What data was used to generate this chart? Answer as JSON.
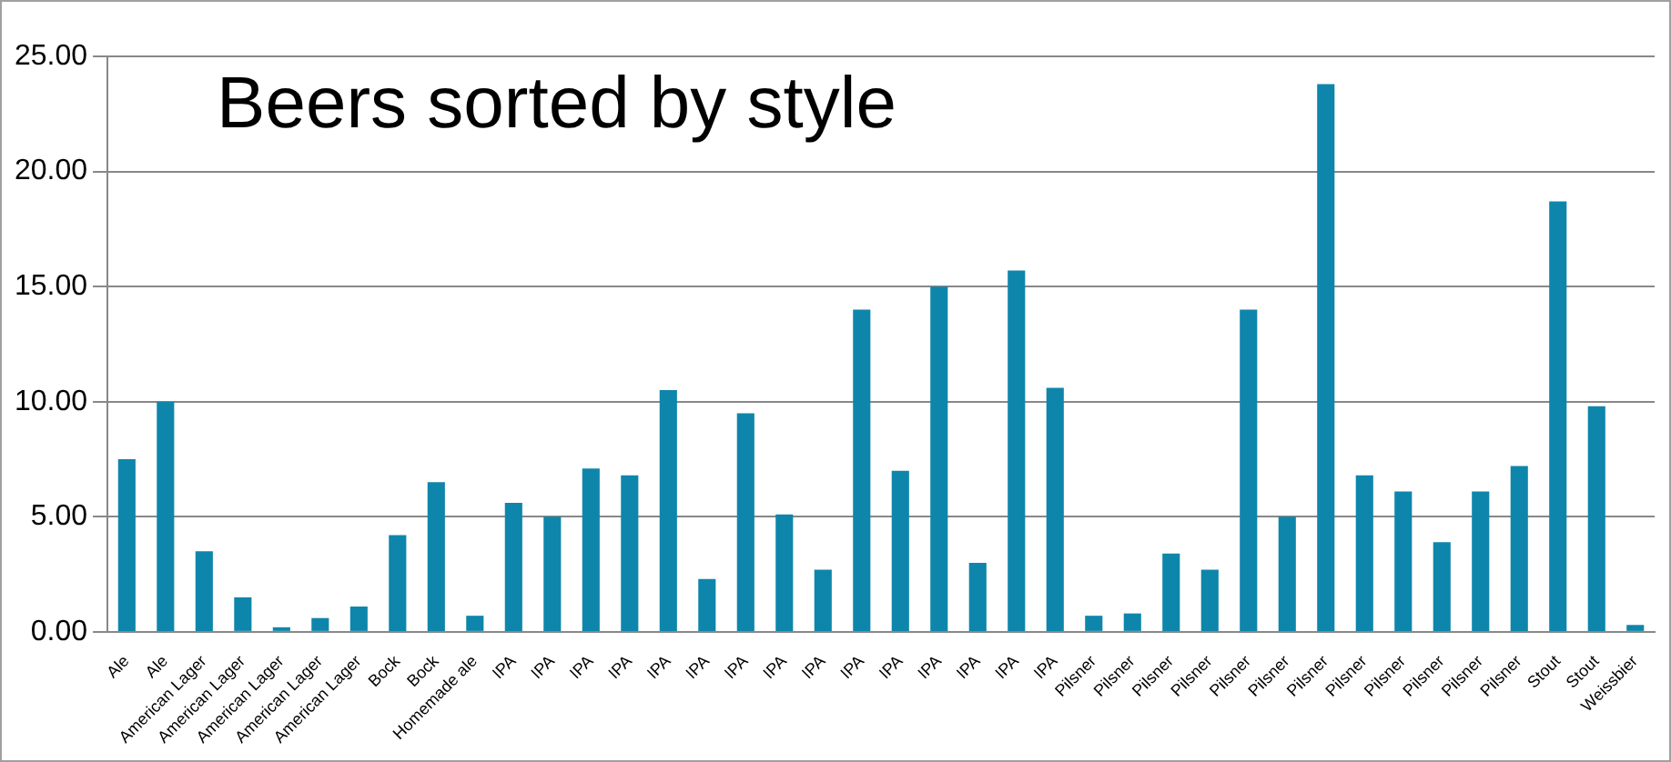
{
  "chart_data": {
    "type": "bar",
    "title": "Beers sorted by style",
    "categories": [
      "Ale",
      "Ale",
      "American Lager",
      "American Lager",
      "American Lager",
      "American Lager",
      "American Lager",
      "Bock",
      "Bock",
      "Homemade ale",
      "IPA",
      "IPA",
      "IPA",
      "IPA",
      "IPA",
      "IPA",
      "IPA",
      "IPA",
      "IPA",
      "IPA",
      "IPA",
      "IPA",
      "IPA",
      "IPA",
      "IPA",
      "Pilsner",
      "Pilsner",
      "Pilsner",
      "Pilsner",
      "Pilsner",
      "Pilsner",
      "Pilsner",
      "Pilsner",
      "Pilsner",
      "Pilsner",
      "Pilsner",
      "Pilsner",
      "Stout",
      "Stout",
      "Weissbier"
    ],
    "values": [
      7.5,
      10.0,
      3.5,
      1.5,
      0.2,
      0.6,
      1.1,
      4.2,
      6.5,
      0.7,
      5.6,
      5.0,
      7.1,
      6.8,
      10.5,
      2.3,
      9.5,
      5.1,
      2.7,
      14.0,
      7.0,
      15.0,
      3.0,
      15.7,
      10.6,
      0.7,
      0.8,
      3.4,
      2.7,
      14.0,
      5.0,
      23.8,
      6.8,
      6.1,
      3.9,
      6.1,
      7.2,
      18.7,
      9.8,
      0.3
    ],
    "color": "#0e86ab",
    "ylim": [
      0,
      25
    ],
    "yticks": [
      {
        "value": 0,
        "label": "0.00"
      },
      {
        "value": 5,
        "label": "5.00"
      },
      {
        "value": 10,
        "label": "10.00"
      },
      {
        "value": 15,
        "label": "15.00"
      },
      {
        "value": 20,
        "label": "20.00"
      },
      {
        "value": 25,
        "label": "25.00"
      }
    ],
    "grid": "y"
  }
}
